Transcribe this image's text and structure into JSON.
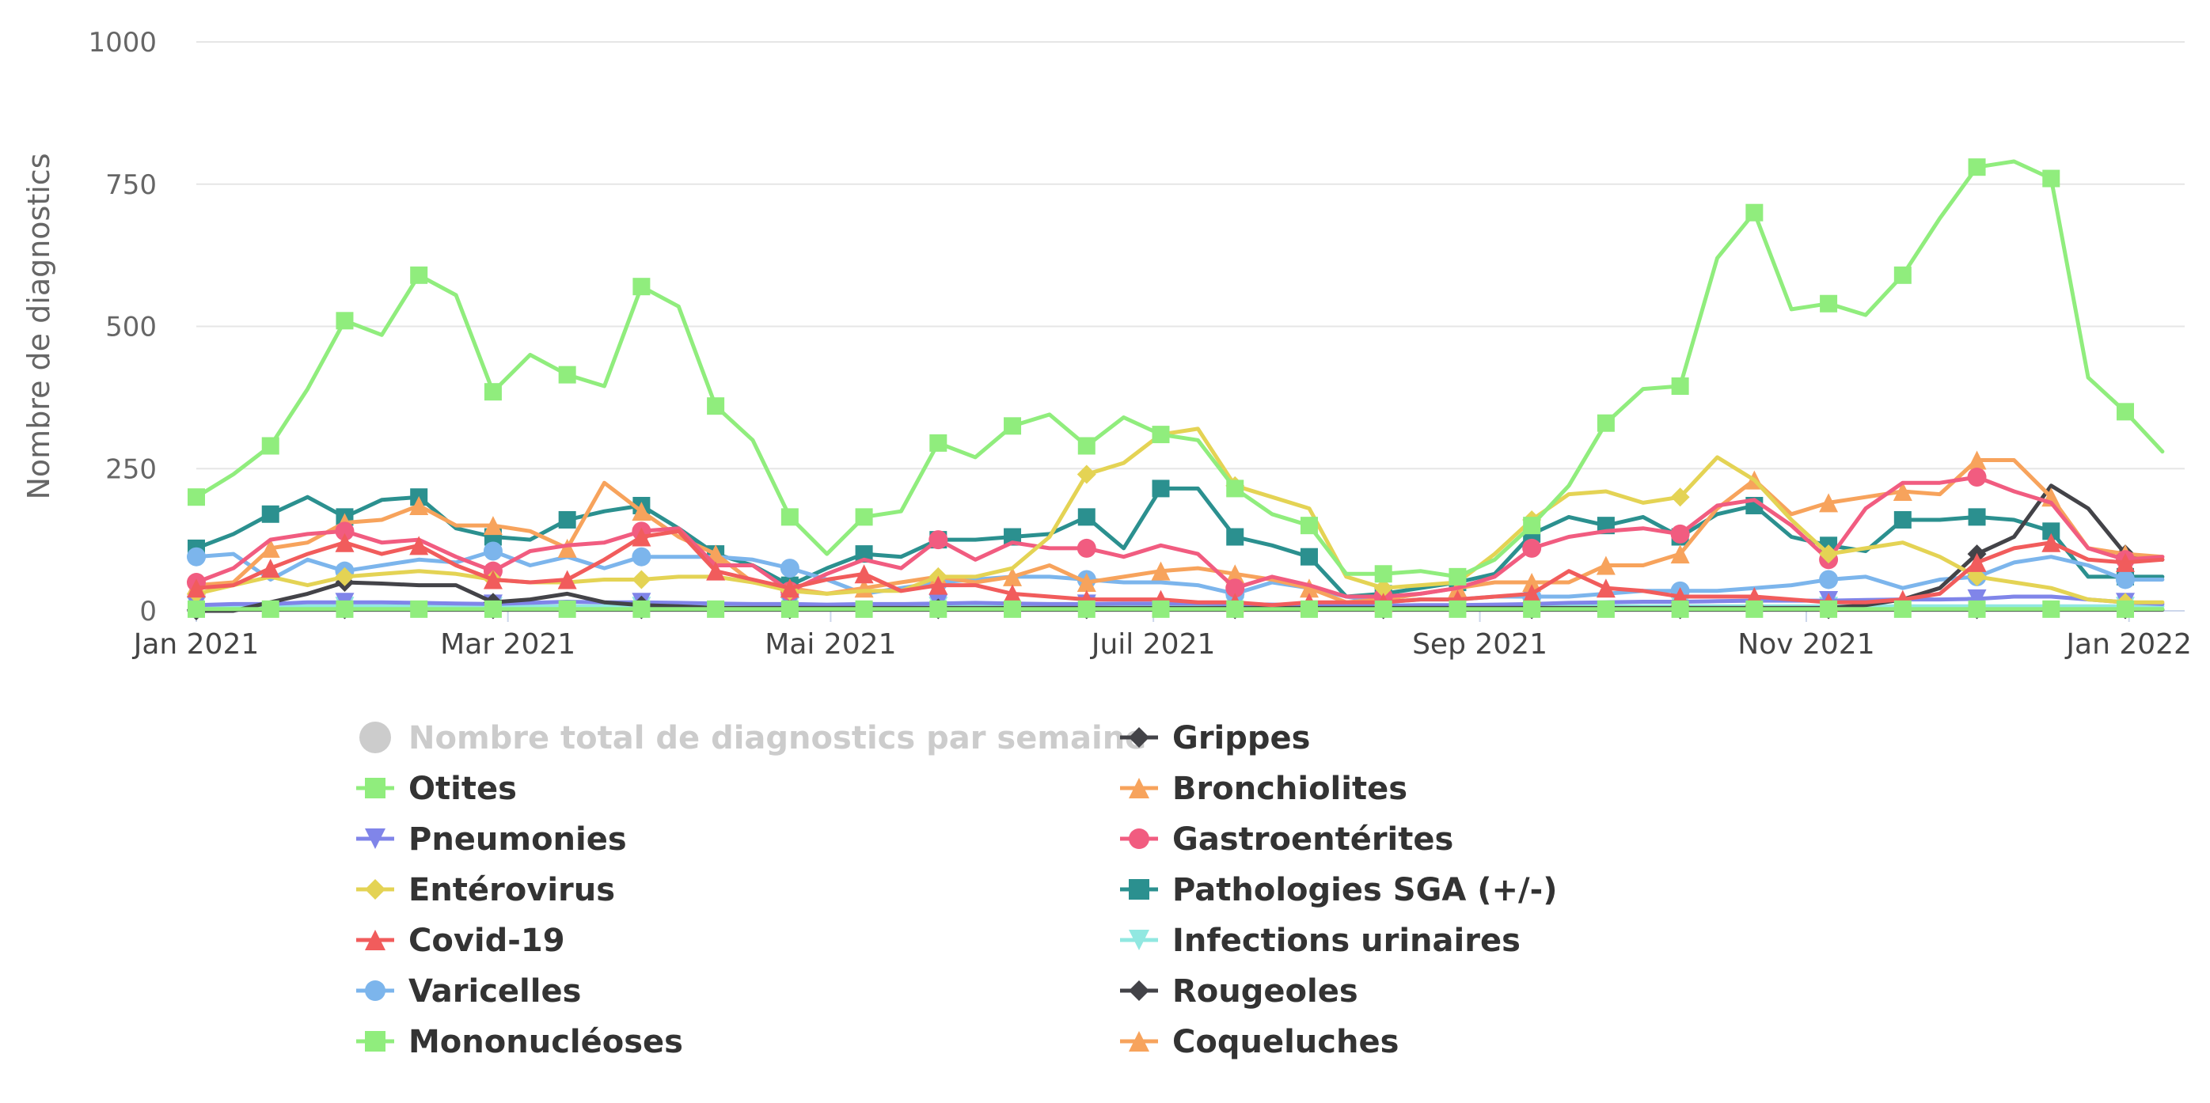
{
  "chart_data": {
    "type": "line",
    "title": "",
    "xlabel": "",
    "ylabel": "Nombre de diagnostics",
    "ylim": [
      0,
      1000
    ],
    "yticks": [
      0,
      250,
      500,
      750,
      1000
    ],
    "xlim_weeks": [
      0,
      53.6
    ],
    "xticks": [
      {
        "label": "Jan 2021",
        "week": 0
      },
      {
        "label": "Mar 2021",
        "week": 8.4
      },
      {
        "label": "Mai 2021",
        "week": 17.1
      },
      {
        "label": "Juil 2021",
        "week": 25.8
      },
      {
        "label": "Sep 2021",
        "week": 34.6
      },
      {
        "label": "Nov 2021",
        "week": 43.4
      },
      {
        "label": "Jan 2022",
        "week": 52.1
      }
    ],
    "x_unit": "weeks since Jan 2021",
    "series": [
      {
        "name": "Nombre total de diagnostics par semaine",
        "color": "#bfbfbf",
        "marker": "circle",
        "hidden": true,
        "values": []
      },
      {
        "name": "Otites",
        "color": "#90ed7d",
        "marker": "square",
        "values": [
          200,
          240,
          290,
          390,
          510,
          485,
          590,
          555,
          385,
          450,
          415,
          395,
          570,
          535,
          360,
          300,
          165,
          100,
          165,
          175,
          295,
          270,
          325,
          345,
          290,
          340,
          310,
          300,
          215,
          170,
          150,
          65,
          65,
          70,
          60,
          90,
          150,
          220,
          330,
          390,
          395,
          620,
          700,
          530,
          540,
          520,
          590,
          690,
          780,
          790,
          760,
          410,
          350,
          280
        ]
      },
      {
        "name": "Pneumonies",
        "color": "#8085e9",
        "marker": "triangle-down",
        "values": [
          10,
          12,
          12,
          15,
          15,
          15,
          14,
          13,
          12,
          14,
          16,
          15,
          15,
          14,
          13,
          12,
          12,
          11,
          12,
          12,
          13,
          14,
          13,
          12,
          12,
          13,
          13,
          13,
          12,
          11,
          10,
          9,
          9,
          10,
          10,
          11,
          12,
          14,
          15,
          16,
          16,
          17,
          18,
          18,
          18,
          19,
          20,
          20,
          21,
          25,
          25,
          20,
          15,
          12
        ]
      },
      {
        "name": "Entérovirus",
        "color": "#e4d354",
        "marker": "diamond",
        "values": [
          30,
          45,
          60,
          45,
          60,
          65,
          70,
          65,
          55,
          50,
          50,
          55,
          55,
          60,
          60,
          50,
          35,
          30,
          35,
          35,
          60,
          60,
          75,
          130,
          240,
          260,
          310,
          320,
          220,
          200,
          180,
          60,
          40,
          45,
          50,
          100,
          160,
          205,
          210,
          190,
          200,
          270,
          230,
          160,
          100,
          110,
          120,
          95,
          60,
          50,
          40,
          20,
          15,
          15
        ]
      },
      {
        "name": "Covid-19",
        "color": "#f15c5c",
        "marker": "triangle",
        "values": [
          40,
          45,
          75,
          100,
          120,
          100,
          115,
          80,
          55,
          50,
          55,
          90,
          130,
          140,
          70,
          55,
          40,
          55,
          65,
          35,
          45,
          45,
          30,
          25,
          20,
          20,
          20,
          15,
          15,
          10,
          15,
          15,
          15,
          20,
          20,
          25,
          30,
          70,
          40,
          35,
          25,
          25,
          25,
          20,
          15,
          15,
          20,
          30,
          85,
          110,
          120,
          90,
          85,
          90
        ]
      },
      {
        "name": "Varicelles",
        "color": "#7cb5ec",
        "marker": "circle",
        "values": [
          95,
          100,
          55,
          90,
          70,
          80,
          90,
          85,
          105,
          80,
          95,
          75,
          95,
          95,
          95,
          90,
          75,
          55,
          30,
          40,
          50,
          55,
          60,
          60,
          55,
          50,
          50,
          45,
          30,
          50,
          40,
          25,
          15,
          20,
          20,
          25,
          25,
          25,
          30,
          35,
          35,
          35,
          40,
          45,
          55,
          60,
          40,
          55,
          60,
          85,
          95,
          80,
          55,
          55
        ]
      },
      {
        "name": "Mononucléoses",
        "color": "#90ed7d",
        "marker": "square",
        "values": [
          3,
          3,
          3,
          3,
          3,
          3,
          3,
          3,
          3,
          3,
          3,
          3,
          3,
          3,
          3,
          3,
          3,
          3,
          3,
          3,
          3,
          3,
          3,
          3,
          3,
          3,
          3,
          3,
          3,
          3,
          3,
          3,
          3,
          3,
          3,
          3,
          3,
          3,
          3,
          3,
          3,
          3,
          3,
          3,
          3,
          3,
          3,
          3,
          3,
          3,
          3,
          3,
          3,
          3
        ]
      },
      {
        "name": "Grippes",
        "color": "#434348",
        "marker": "diamond",
        "values": [
          0,
          0,
          15,
          30,
          50,
          48,
          45,
          45,
          15,
          20,
          30,
          15,
          10,
          8,
          5,
          5,
          5,
          5,
          5,
          5,
          5,
          5,
          5,
          5,
          5,
          5,
          5,
          5,
          5,
          5,
          5,
          5,
          5,
          5,
          5,
          5,
          5,
          5,
          5,
          5,
          5,
          5,
          5,
          5,
          5,
          10,
          20,
          40,
          100,
          130,
          220,
          180,
          100,
          90
        ]
      },
      {
        "name": "Bronchiolites",
        "color": "#f7a35c",
        "marker": "triangle",
        "values": [
          45,
          50,
          110,
          120,
          155,
          160,
          185,
          150,
          150,
          140,
          110,
          225,
          175,
          130,
          100,
          50,
          40,
          30,
          40,
          50,
          60,
          50,
          60,
          80,
          50,
          60,
          70,
          75,
          65,
          55,
          40,
          15,
          20,
          30,
          40,
          50,
          50,
          50,
          80,
          80,
          100,
          180,
          230,
          170,
          190,
          200,
          210,
          205,
          265,
          265,
          200,
          110,
          100,
          95
        ]
      },
      {
        "name": "Gastroentérites",
        "color": "#f15c80",
        "marker": "circle",
        "values": [
          50,
          75,
          125,
          135,
          140,
          120,
          125,
          95,
          70,
          105,
          115,
          120,
          140,
          145,
          80,
          80,
          35,
          65,
          90,
          75,
          125,
          90,
          120,
          110,
          110,
          95,
          115,
          100,
          40,
          60,
          45,
          25,
          25,
          30,
          40,
          60,
          110,
          130,
          140,
          145,
          135,
          185,
          195,
          150,
          90,
          180,
          225,
          225,
          235,
          210,
          190,
          110,
          90,
          95
        ]
      },
      {
        "name": "Pathologies SGA (+/-)",
        "color": "#2b908f",
        "marker": "square",
        "values": [
          110,
          135,
          170,
          200,
          165,
          195,
          200,
          145,
          130,
          125,
          160,
          175,
          185,
          145,
          100,
          80,
          45,
          75,
          100,
          95,
          125,
          125,
          130,
          135,
          165,
          110,
          215,
          215,
          130,
          115,
          95,
          25,
          30,
          40,
          50,
          65,
          135,
          165,
          150,
          165,
          130,
          170,
          185,
          130,
          115,
          105,
          160,
          160,
          165,
          160,
          140,
          60,
          60,
          60
        ]
      },
      {
        "name": "Infections urinaires",
        "color": "#91e8e1",
        "marker": "triangle-down",
        "values": [
          8,
          8,
          8,
          8,
          8,
          8,
          8,
          8,
          8,
          8,
          8,
          8,
          8,
          8,
          8,
          8,
          8,
          8,
          8,
          8,
          8,
          8,
          8,
          8,
          8,
          8,
          8,
          8,
          8,
          8,
          8,
          8,
          8,
          8,
          8,
          8,
          8,
          8,
          8,
          8,
          8,
          8,
          8,
          8,
          8,
          8,
          8,
          8,
          8,
          8,
          8,
          8,
          8,
          8
        ]
      },
      {
        "name": "Rougeoles",
        "color": "#434348",
        "marker": "diamond",
        "values": [
          2,
          2,
          2,
          2,
          2,
          2,
          2,
          2,
          2,
          2,
          2,
          2,
          2,
          2,
          2,
          2,
          2,
          2,
          2,
          2,
          2,
          2,
          2,
          2,
          2,
          2,
          2,
          2,
          2,
          2,
          2,
          2,
          2,
          2,
          2,
          2,
          2,
          2,
          2,
          2,
          2,
          2,
          2,
          2,
          2,
          2,
          2,
          2,
          2,
          2,
          2,
          2,
          2,
          2
        ]
      },
      {
        "name": "Coqueluches",
        "color": "#f7a35c",
        "marker": "triangle",
        "values": [
          1,
          1,
          1,
          1,
          1,
          1,
          1,
          1,
          1,
          1,
          1,
          1,
          1,
          1,
          1,
          1,
          1,
          1,
          1,
          1,
          1,
          1,
          1,
          1,
          1,
          1,
          1,
          1,
          1,
          1,
          1,
          1,
          1,
          1,
          1,
          1,
          1,
          1,
          1,
          1,
          1,
          1,
          1,
          1,
          1,
          1,
          1,
          1,
          1,
          1,
          1,
          1,
          1,
          1
        ]
      }
    ],
    "legend": {
      "placement": "bottom",
      "left_column": [
        "Nombre total de diagnostics par semaine",
        "Otites",
        "Pneumonies",
        "Entérovirus",
        "Covid-19",
        "Varicelles",
        "Mononucléoses"
      ],
      "right_column": [
        "Grippes",
        "Bronchiolites",
        "Gastroentérites",
        "Pathologies SGA (+/-)",
        "Infections urinaires",
        "Rougeoles",
        "Coqueluches"
      ]
    }
  }
}
